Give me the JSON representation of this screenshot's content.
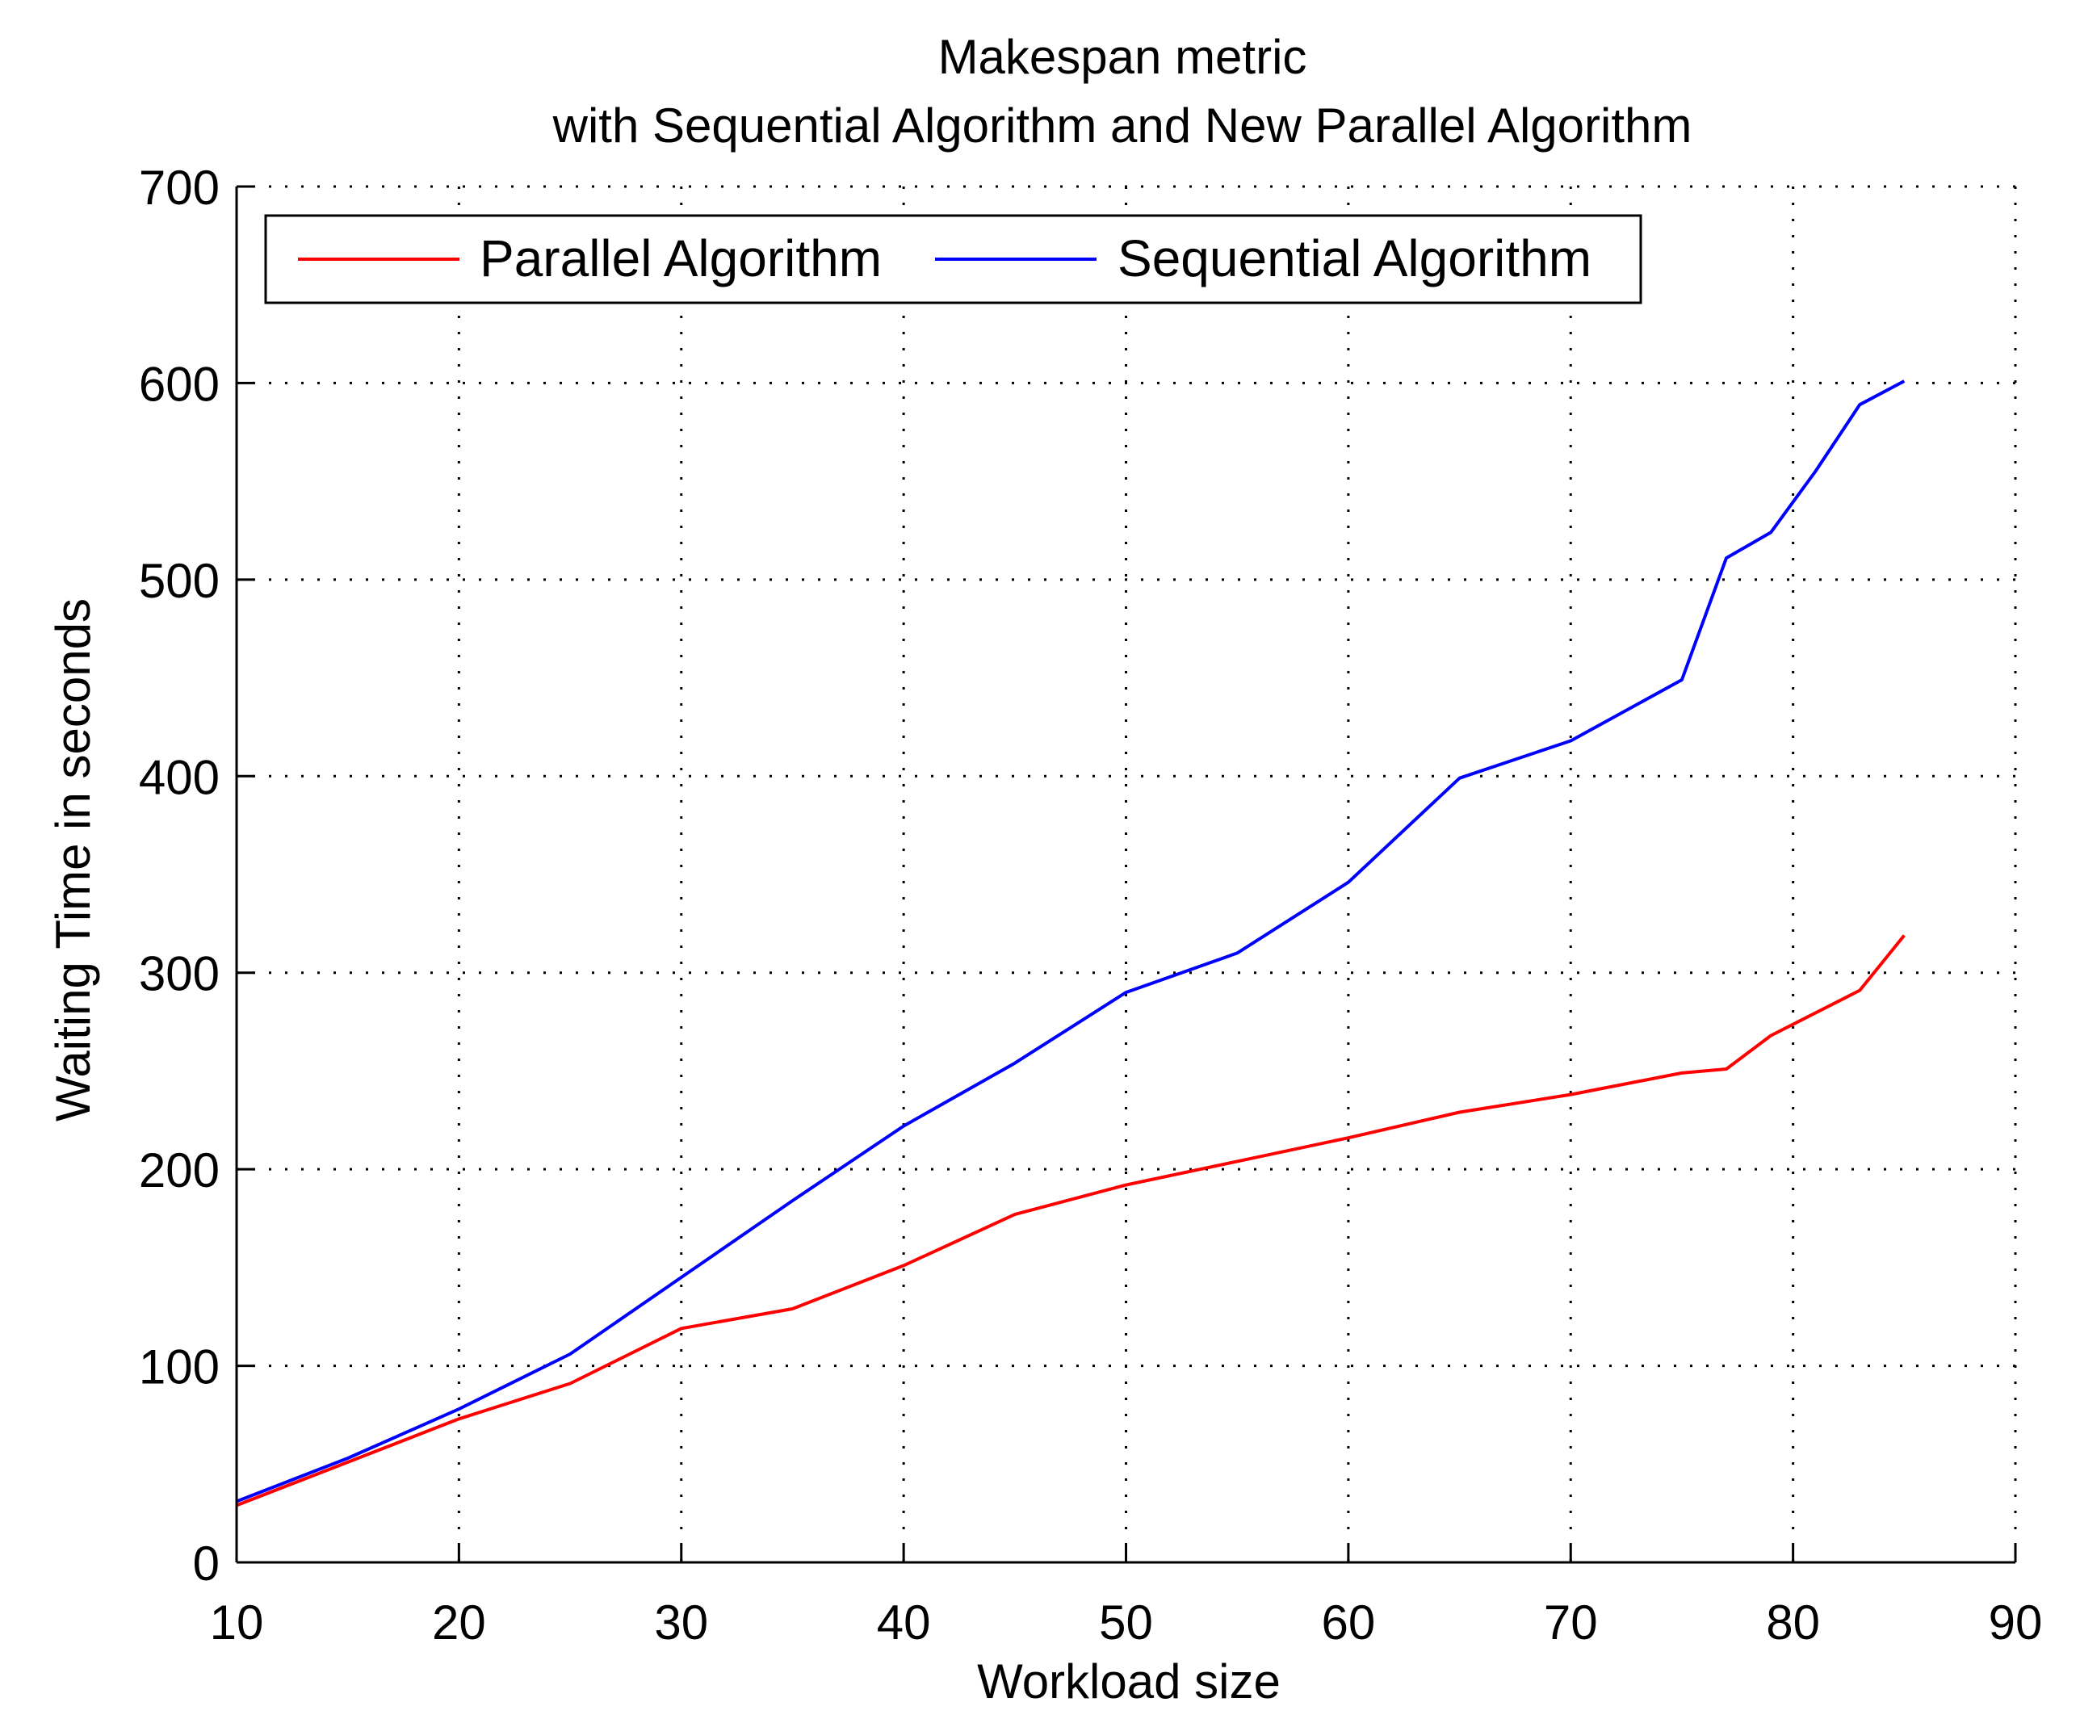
{
  "chart_data": {
    "type": "line",
    "title": [
      "Makespan metric",
      "with Sequential Algorithm and New Parallel Algorithm"
    ],
    "xlabel": "Workload size",
    "ylabel": "Waiting Time in seconds",
    "xlim": [
      10,
      90
    ],
    "ylim": [
      0,
      700
    ],
    "xticks": [
      10,
      20,
      30,
      40,
      50,
      60,
      70,
      80,
      90
    ],
    "yticks": [
      0,
      100,
      200,
      300,
      400,
      500,
      600,
      700
    ],
    "grid": true,
    "legend_position": "top-left",
    "series": [
      {
        "name": "Parallel Algorithm",
        "color": "#ff0000",
        "x": [
          10,
          15,
          20,
          25,
          30,
          35,
          40,
          45,
          50,
          55,
          60,
          65,
          70,
          75,
          77,
          79,
          83,
          85
        ],
        "y": [
          29,
          51,
          73,
          91,
          119,
          129,
          151,
          177,
          192,
          204,
          216,
          229,
          238,
          249,
          251,
          268,
          291,
          319
        ]
      },
      {
        "name": "Sequential Algorithm",
        "color": "#0000ff",
        "x": [
          10,
          15,
          20,
          25,
          30,
          35,
          40,
          45,
          50,
          55,
          60,
          65,
          70,
          75,
          77,
          79,
          81,
          83,
          85
        ],
        "y": [
          31,
          53,
          78,
          106,
          145,
          184,
          222,
          254,
          290,
          310,
          346,
          399,
          418,
          449,
          511,
          524,
          555,
          589,
          601
        ]
      }
    ]
  }
}
